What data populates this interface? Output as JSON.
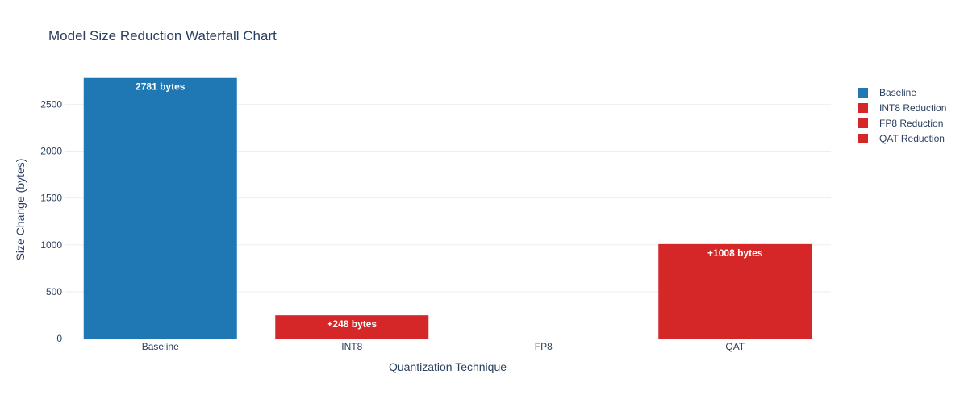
{
  "chart_data": {
    "type": "bar",
    "title": "Model Size Reduction Waterfall Chart",
    "xlabel": "Quantization Technique",
    "ylabel": "Size Change (bytes)",
    "categories": [
      "Baseline",
      "INT8",
      "FP8",
      "QAT"
    ],
    "ylim": [
      0,
      2925
    ],
    "yticks": [
      0,
      500,
      1000,
      1500,
      2000,
      2500
    ],
    "grid": true,
    "legend_position": "right",
    "series": [
      {
        "name": "Baseline",
        "color": "#1f77b4",
        "values": [
          2781,
          null,
          null,
          null
        ],
        "labels": [
          "2781 bytes",
          "",
          "",
          ""
        ]
      },
      {
        "name": "INT8 Reduction",
        "color": "#d62728",
        "values": [
          null,
          248,
          null,
          null
        ],
        "labels": [
          "",
          "+248 bytes",
          "",
          ""
        ]
      },
      {
        "name": "FP8 Reduction",
        "color": "#d62728",
        "values": [
          null,
          null,
          0,
          null
        ],
        "labels": [
          "",
          "",
          "",
          ""
        ]
      },
      {
        "name": "QAT Reduction",
        "color": "#d62728",
        "values": [
          null,
          null,
          null,
          1008
        ],
        "labels": [
          "",
          "",
          "",
          "+1008 bytes"
        ]
      }
    ]
  }
}
